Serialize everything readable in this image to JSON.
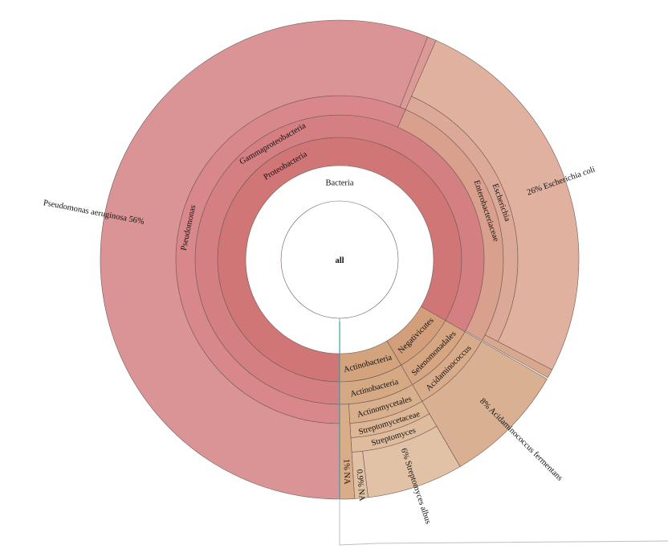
{
  "chart_data": {
    "type": "pie",
    "variant": "sunburst",
    "start_angle_deg": 90,
    "root": {
      "name": "all",
      "children": [
        {
          "name": "Bacteria",
          "value": 100,
          "color": "#cd6b6b",
          "children": [
            {
              "name": "Proteobacteria",
              "value": 83.3,
              "color": "#d17676",
              "children": [
                {
                  "name": "Gammaproteobacteria",
                  "value": 83.3,
                  "color": "#d47f81",
                  "children": [
                    {
                      "name": "Pseudomonas",
                      "value": 56.6,
                      "color": "#d8888b",
                      "children": [
                        {
                          "name": "Pseudomonas aeruginosa",
                          "value": 56,
                          "percent": "56%",
                          "color": "#db9495"
                        },
                        {
                          "name": "",
                          "value": 0.6,
                          "color": "#db9a96"
                        }
                      ]
                    },
                    {
                      "name": "Enterobacteriaceae",
                      "value": 26.6,
                      "color": "#d9a08d",
                      "children": [
                        {
                          "name": "Escherichia",
                          "value": 26,
                          "color": "#dca998",
                          "children": [
                            {
                              "name": "Escherichia coli",
                              "value": 26,
                              "percent": "26%",
                              "color": "#dfb19e"
                            }
                          ]
                        },
                        {
                          "name": "",
                          "value": 0.6,
                          "color": "#d8a88e"
                        }
                      ]
                    }
                  ]
                }
              ]
            },
            {
              "name": "Negativicutes",
              "value": 8.3,
              "color": "#d39f7b",
              "children": [
                {
                  "name": "Selenomonadales",
                  "value": 8.3,
                  "color": "#d6a683",
                  "children": [
                    {
                      "name": "Acidaminococcus",
                      "value": 8.3,
                      "color": "#d8ab8a",
                      "children": [
                        {
                          "name": "Acidaminococcus fermentans",
                          "value": 8.3,
                          "percent": "8%",
                          "color": "#d9b092"
                        }
                      ]
                    }
                  ]
                }
              ]
            },
            {
              "name": "Actinobacteria",
              "value": 8.4,
              "color": "#d3a37d",
              "children": [
                {
                  "name": "Actinobacteria",
                  "value": 8.4,
                  "color": "#d6a985",
                  "children": [
                    {
                      "name": "Actinomycetales",
                      "value": 7.4,
                      "color": "#d9b08d",
                      "children": [
                        {
                          "name": "Streptomycetaceae",
                          "value": 7.4,
                          "color": "#dcb695",
                          "children": [
                            {
                              "name": "Streptomyces",
                              "value": 7.4,
                              "color": "#dfbc9d",
                              "children": [
                                {
                                  "name": "Streptomyces albus",
                                  "value": 6.5,
                                  "percent": "6%",
                                  "color": "#e2c2a6"
                                },
                                {
                                  "name": "NA",
                                  "value": 0.9,
                                  "percent": "0.9%",
                                  "color": "#e1c1a4"
                                }
                              ]
                            }
                          ]
                        }
                      ]
                    },
                    {
                      "name": "NA",
                      "value": 1.0,
                      "percent": "1%",
                      "color": "#d8ad88"
                    }
                  ]
                }
              ]
            }
          ]
        }
      ]
    },
    "accent_colors": {
      "sliver_line": "#3a9ea0",
      "frame_line": "#bdbdbd"
    }
  }
}
